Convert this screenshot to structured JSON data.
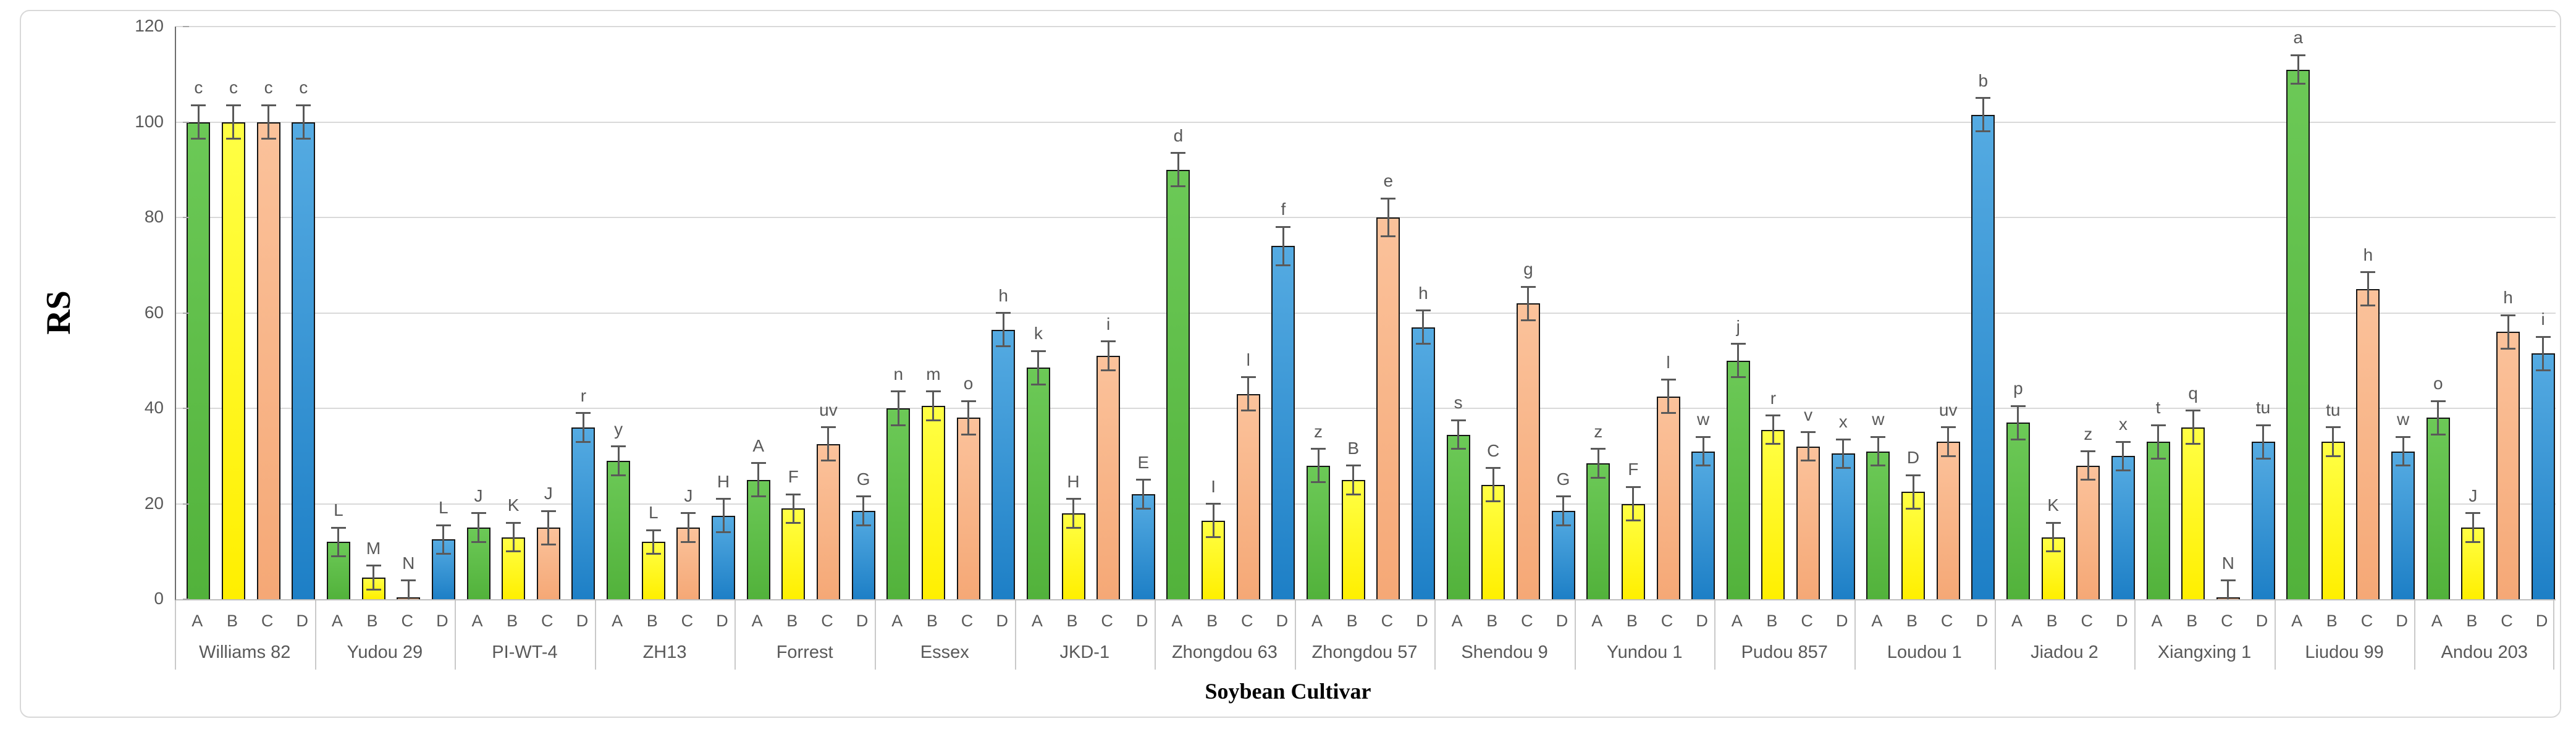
{
  "chart_data": {
    "type": "bar",
    "title": "",
    "ylabel": "RS",
    "xlabel": "Soybean Cultivar",
    "ylim": [
      0,
      120
    ],
    "yticks": [
      0,
      20,
      40,
      60,
      80,
      100,
      120
    ],
    "grid": "horizontal",
    "legend": "none",
    "series_labels": [
      "A",
      "B",
      "C",
      "D"
    ],
    "colors": {
      "A": "#5ABD42",
      "B": "#FFF000",
      "C": "#F8B084",
      "D": "#2E8FD0",
      "bar_outline": "#141414",
      "error_bar": "#595959",
      "axis_text": "#595959"
    },
    "groups": [
      {
        "cultivar": "Williams 82",
        "bars": [
          {
            "treatment": "A",
            "value": 100,
            "err": 3.5,
            "letter": "c"
          },
          {
            "treatment": "B",
            "value": 100,
            "err": 3.5,
            "letter": "c"
          },
          {
            "treatment": "C",
            "value": 100,
            "err": 3.5,
            "letter": "c"
          },
          {
            "treatment": "D",
            "value": 100,
            "err": 3.5,
            "letter": "c"
          }
        ]
      },
      {
        "cultivar": "Yudou 29",
        "bars": [
          {
            "treatment": "A",
            "value": 12,
            "err": 3,
            "letter": "L"
          },
          {
            "treatment": "B",
            "value": 4.5,
            "err": 2.5,
            "letter": "M"
          },
          {
            "treatment": "C",
            "value": 0.4,
            "err": 3.5,
            "letter": "N"
          },
          {
            "treatment": "D",
            "value": 12.5,
            "err": 3,
            "letter": "L"
          }
        ]
      },
      {
        "cultivar": "PI-WT-4",
        "bars": [
          {
            "treatment": "A",
            "value": 15,
            "err": 3,
            "letter": "J"
          },
          {
            "treatment": "B",
            "value": 13,
            "err": 3,
            "letter": "K"
          },
          {
            "treatment": "C",
            "value": 15,
            "err": 3.5,
            "letter": "J"
          },
          {
            "treatment": "D",
            "value": 36,
            "err": 3,
            "letter": "r"
          }
        ]
      },
      {
        "cultivar": "ZH13",
        "bars": [
          {
            "treatment": "A",
            "value": 29,
            "err": 3,
            "letter": "y"
          },
          {
            "treatment": "B",
            "value": 12,
            "err": 2.5,
            "letter": "L"
          },
          {
            "treatment": "C",
            "value": 15,
            "err": 3,
            "letter": "J"
          },
          {
            "treatment": "D",
            "value": 17.5,
            "err": 3.5,
            "letter": "H"
          }
        ]
      },
      {
        "cultivar": "Forrest",
        "bars": [
          {
            "treatment": "A",
            "value": 25,
            "err": 3.5,
            "letter": "A"
          },
          {
            "treatment": "B",
            "value": 19,
            "err": 3,
            "letter": "F"
          },
          {
            "treatment": "C",
            "value": 32.5,
            "err": 3.5,
            "letter": "uv"
          },
          {
            "treatment": "D",
            "value": 18.5,
            "err": 3,
            "letter": "G"
          }
        ]
      },
      {
        "cultivar": "Essex",
        "bars": [
          {
            "treatment": "A",
            "value": 40,
            "err": 3.5,
            "letter": "n"
          },
          {
            "treatment": "B",
            "value": 40.5,
            "err": 3,
            "letter": "m"
          },
          {
            "treatment": "C",
            "value": 38,
            "err": 3.5,
            "letter": "o"
          },
          {
            "treatment": "D",
            "value": 56.5,
            "err": 3.5,
            "letter": "h"
          }
        ]
      },
      {
        "cultivar": "JKD-1",
        "bars": [
          {
            "treatment": "A",
            "value": 48.5,
            "err": 3.5,
            "letter": "k"
          },
          {
            "treatment": "B",
            "value": 18,
            "err": 3,
            "letter": "H"
          },
          {
            "treatment": "C",
            "value": 51,
            "err": 3,
            "letter": "i"
          },
          {
            "treatment": "D",
            "value": 22,
            "err": 3,
            "letter": "E"
          }
        ]
      },
      {
        "cultivar": "Zhongdou 63",
        "bars": [
          {
            "treatment": "A",
            "value": 90,
            "err": 3.5,
            "letter": "d"
          },
          {
            "treatment": "B",
            "value": 16.5,
            "err": 3.5,
            "letter": "I"
          },
          {
            "treatment": "C",
            "value": 43,
            "err": 3.5,
            "letter": "l"
          },
          {
            "treatment": "D",
            "value": 74,
            "err": 4,
            "letter": "f"
          }
        ]
      },
      {
        "cultivar": "Zhongdou 57",
        "bars": [
          {
            "treatment": "A",
            "value": 28,
            "err": 3.5,
            "letter": "z"
          },
          {
            "treatment": "B",
            "value": 25,
            "err": 3,
            "letter": "B"
          },
          {
            "treatment": "C",
            "value": 80,
            "err": 4,
            "letter": "e"
          },
          {
            "treatment": "D",
            "value": 57,
            "err": 3.5,
            "letter": "h"
          }
        ]
      },
      {
        "cultivar": "Shendou 9",
        "bars": [
          {
            "treatment": "A",
            "value": 34.5,
            "err": 3,
            "letter": "s"
          },
          {
            "treatment": "B",
            "value": 24,
            "err": 3.5,
            "letter": "C"
          },
          {
            "treatment": "C",
            "value": 62,
            "err": 3.5,
            "letter": "g"
          },
          {
            "treatment": "D",
            "value": 18.5,
            "err": 3,
            "letter": "G"
          }
        ]
      },
      {
        "cultivar": "Yundou 1",
        "bars": [
          {
            "treatment": "A",
            "value": 28.5,
            "err": 3,
            "letter": "z"
          },
          {
            "treatment": "B",
            "value": 20,
            "err": 3.5,
            "letter": "F"
          },
          {
            "treatment": "C",
            "value": 42.5,
            "err": 3.5,
            "letter": "l"
          },
          {
            "treatment": "D",
            "value": 31,
            "err": 3,
            "letter": "w"
          }
        ]
      },
      {
        "cultivar": "Pudou 857",
        "bars": [
          {
            "treatment": "A",
            "value": 50,
            "err": 3.5,
            "letter": "j"
          },
          {
            "treatment": "B",
            "value": 35.5,
            "err": 3,
            "letter": "r"
          },
          {
            "treatment": "C",
            "value": 32,
            "err": 3,
            "letter": "v"
          },
          {
            "treatment": "D",
            "value": 30.5,
            "err": 3,
            "letter": "x"
          }
        ]
      },
      {
        "cultivar": "Loudou 1",
        "bars": [
          {
            "treatment": "A",
            "value": 31,
            "err": 3,
            "letter": "w"
          },
          {
            "treatment": "B",
            "value": 22.5,
            "err": 3.5,
            "letter": "D"
          },
          {
            "treatment": "C",
            "value": 33,
            "err": 3,
            "letter": "uv"
          },
          {
            "treatment": "D",
            "value": 101.5,
            "err": 3.5,
            "letter": "b"
          }
        ]
      },
      {
        "cultivar": "Jiadou 2",
        "bars": [
          {
            "treatment": "A",
            "value": 37,
            "err": 3.5,
            "letter": "p"
          },
          {
            "treatment": "B",
            "value": 13,
            "err": 3,
            "letter": "K"
          },
          {
            "treatment": "C",
            "value": 28,
            "err": 3,
            "letter": "z"
          },
          {
            "treatment": "D",
            "value": 30,
            "err": 3,
            "letter": "x"
          }
        ]
      },
      {
        "cultivar": "Xiangxing 1",
        "bars": [
          {
            "treatment": "A",
            "value": 33,
            "err": 3.5,
            "letter": "t"
          },
          {
            "treatment": "B",
            "value": 36,
            "err": 3.5,
            "letter": "q"
          },
          {
            "treatment": "C",
            "value": 0.4,
            "err": 3.5,
            "letter": "N"
          },
          {
            "treatment": "D",
            "value": 33,
            "err": 3.5,
            "letter": "tu"
          }
        ]
      },
      {
        "cultivar": "Liudou 99",
        "bars": [
          {
            "treatment": "A",
            "value": 111,
            "err": 3,
            "letter": "a"
          },
          {
            "treatment": "B",
            "value": 33,
            "err": 3,
            "letter": "tu"
          },
          {
            "treatment": "C",
            "value": 65,
            "err": 3.5,
            "letter": "h"
          },
          {
            "treatment": "D",
            "value": 31,
            "err": 3,
            "letter": "w"
          }
        ]
      },
      {
        "cultivar": "Andou 203",
        "bars": [
          {
            "treatment": "A",
            "value": 38,
            "err": 3.5,
            "letter": "o"
          },
          {
            "treatment": "B",
            "value": 15,
            "err": 3,
            "letter": "J"
          },
          {
            "treatment": "C",
            "value": 56,
            "err": 3.5,
            "letter": "h"
          },
          {
            "treatment": "D",
            "value": 51.5,
            "err": 3.5,
            "letter": "i"
          }
        ]
      }
    ]
  }
}
